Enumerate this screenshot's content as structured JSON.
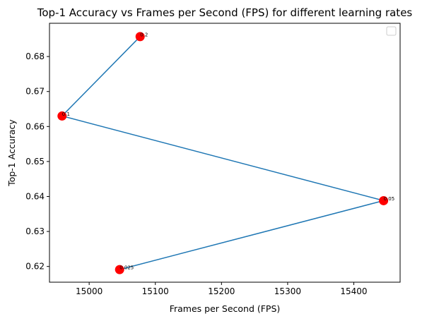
{
  "chart_data": {
    "type": "scatter",
    "title": "Top-1 Accuracy vs Frames per Second (FPS) for different learning rates",
    "xlabel": "Frames per Second (FPS)",
    "ylabel": "Top-1 Accuracy",
    "xlim": [
      14940,
      15470
    ],
    "ylim": [
      0.6155,
      0.6895
    ],
    "xticks": [
      15000,
      15100,
      15200,
      15300,
      15400
    ],
    "xtick_labels": [
      "15000",
      "15100",
      "15200",
      "15300",
      "15400"
    ],
    "yticks": [
      0.62,
      0.63,
      0.64,
      0.65,
      0.66,
      0.67,
      0.68
    ],
    "ytick_labels": [
      "0.62",
      "0.63",
      "0.64",
      "0.65",
      "0.66",
      "0.67",
      "0.68"
    ],
    "grid": false,
    "legend": "top-right",
    "points": [
      {
        "label": "0.2",
        "x": 15077,
        "y": 0.6857
      },
      {
        "label": "0.1",
        "x": 14959,
        "y": 0.663
      },
      {
        "label": "0.05",
        "x": 15445,
        "y": 0.6388
      },
      {
        "label": "0.025",
        "x": 15046,
        "y": 0.6191
      }
    ],
    "colors": {
      "line": "#1f77b4",
      "marker": "#ff0000"
    }
  }
}
